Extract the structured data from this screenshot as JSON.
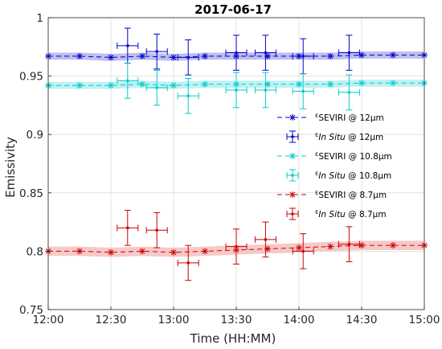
{
  "chart_data": {
    "type": "scatter",
    "title": "2017-06-17",
    "xlabel": "Time (HH:MM)",
    "ylabel": "Emissivity",
    "xlim": [
      "12:00",
      "15:00"
    ],
    "ylim": [
      0.75,
      1.0
    ],
    "xticks": [
      "12:00",
      "12:30",
      "13:00",
      "13:30",
      "14:00",
      "14:30",
      "15:00"
    ],
    "yticks": [
      "0.75",
      "0.8",
      "0.85",
      "0.9",
      "0.95",
      "1"
    ],
    "grid": true,
    "legend_position": "right",
    "series": [
      {
        "name": "SEVIRI @ 12µm",
        "kind": "seviri",
        "color": "#0000cc",
        "band_color": "#b3b3ee",
        "band_halfwidth": 0.003,
        "x": [
          "12:00",
          "12:15",
          "12:30",
          "12:45",
          "13:00",
          "13:15",
          "13:30",
          "13:45",
          "14:00",
          "14:15",
          "14:30",
          "14:45",
          "15:00"
        ],
        "y": [
          0.967,
          0.967,
          0.966,
          0.967,
          0.966,
          0.967,
          0.967,
          0.967,
          0.967,
          0.967,
          0.968,
          0.968,
          0.968
        ]
      },
      {
        "name": "In Situ @ 12µm",
        "kind": "insitu",
        "color": "#0000cc",
        "x": [
          "12:38",
          "12:52",
          "13:07",
          "13:30",
          "13:44",
          "14:02",
          "14:24"
        ],
        "y": [
          0.976,
          0.971,
          0.966,
          0.97,
          0.97,
          0.967,
          0.97
        ],
        "yerr": [
          0.015,
          0.015,
          0.015,
          0.015,
          0.015,
          0.015,
          0.015
        ],
        "xerr_min": 5
      },
      {
        "name": "SEVIRI @ 10.8µm",
        "kind": "seviri",
        "color": "#00cccc",
        "band_color": "#b3f0f0",
        "band_halfwidth": 0.003,
        "x": [
          "12:00",
          "12:15",
          "12:30",
          "12:45",
          "13:00",
          "13:15",
          "13:30",
          "13:45",
          "14:00",
          "14:15",
          "14:30",
          "14:45",
          "15:00"
        ],
        "y": [
          0.942,
          0.942,
          0.942,
          0.943,
          0.942,
          0.943,
          0.943,
          0.943,
          0.943,
          0.943,
          0.944,
          0.944,
          0.944
        ]
      },
      {
        "name": "In Situ @ 10.8µm",
        "kind": "insitu",
        "color": "#00cccc",
        "x": [
          "12:38",
          "12:52",
          "13:07",
          "13:30",
          "13:44",
          "14:02",
          "14:24"
        ],
        "y": [
          0.946,
          0.94,
          0.933,
          0.938,
          0.938,
          0.937,
          0.936
        ],
        "yerr": [
          0.015,
          0.015,
          0.015,
          0.015,
          0.015,
          0.015,
          0.015
        ],
        "xerr_min": 5
      },
      {
        "name": "SEVIRI @ 8.7µm",
        "kind": "seviri",
        "color": "#cc0000",
        "band_color": "#f5c0c0",
        "band_halfwidth": 0.004,
        "x": [
          "12:00",
          "12:15",
          "12:30",
          "12:45",
          "13:00",
          "13:15",
          "13:30",
          "13:45",
          "14:00",
          "14:15",
          "14:30",
          "14:45",
          "15:00"
        ],
        "y": [
          0.8,
          0.8,
          0.799,
          0.8,
          0.799,
          0.8,
          0.801,
          0.802,
          0.803,
          0.804,
          0.805,
          0.805,
          0.805
        ]
      },
      {
        "name": "In Situ @ 8.7µm",
        "kind": "insitu",
        "color": "#cc0000",
        "x": [
          "12:38",
          "12:52",
          "13:07",
          "13:30",
          "13:44",
          "14:02",
          "14:24"
        ],
        "y": [
          0.82,
          0.818,
          0.79,
          0.804,
          0.81,
          0.8,
          0.806
        ],
        "yerr": [
          0.015,
          0.015,
          0.015,
          0.015,
          0.015,
          0.015,
          0.015
        ],
        "xerr_min": 5
      }
    ],
    "legend": [
      {
        "epsilon": "ε",
        "sub": "SEVIRI",
        "sub_italic": false,
        "rest": " @ 12µm"
      },
      {
        "epsilon": "ε",
        "sub": "In Situ",
        "sub_italic": true,
        "rest": " @ 12µm"
      },
      {
        "epsilon": "ε",
        "sub": "SEVIRI",
        "sub_italic": false,
        "rest": " @ 10.8µm"
      },
      {
        "epsilon": "ε",
        "sub": "In Situ",
        "sub_italic": true,
        "rest": " @ 10.8µm"
      },
      {
        "epsilon": "ε",
        "sub": "SEVIRI",
        "sub_italic": false,
        "rest": " @ 8.7µm"
      },
      {
        "epsilon": "ε",
        "sub": "In Situ",
        "sub_italic": true,
        "rest": " @ 8.7µm"
      }
    ]
  }
}
